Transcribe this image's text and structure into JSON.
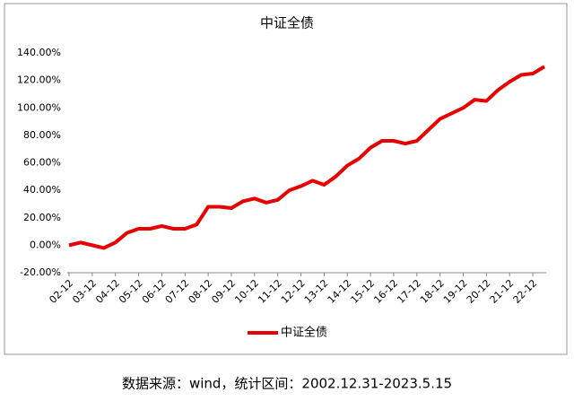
{
  "chart_data": {
    "type": "line",
    "title": "中证全债",
    "categories": [
      "02-12",
      null,
      "03-12",
      null,
      "04-12",
      null,
      "05-12",
      null,
      "06-12",
      null,
      "07-12",
      null,
      "08-12",
      null,
      "09-12",
      null,
      "10-12",
      null,
      "11-12",
      null,
      "12-12",
      null,
      "13-12",
      null,
      "14-12",
      null,
      "15-12",
      null,
      "16-12",
      null,
      "17-12",
      null,
      "18-12",
      null,
      "19-12",
      null,
      "20-12",
      null,
      "21-12",
      null,
      "22-12",
      null
    ],
    "series": [
      {
        "name": "中证全债",
        "color": "#e60000",
        "values": [
          0,
          2,
          0,
          -2,
          2,
          9,
          12,
          12,
          14,
          12,
          12,
          15,
          28,
          28,
          27,
          32,
          34,
          31,
          33,
          40,
          43,
          47,
          44,
          50,
          58,
          63,
          71,
          76,
          76,
          74,
          76,
          84,
          92,
          96,
          100,
          106,
          105,
          113,
          119,
          124,
          125,
          130
        ]
      }
    ],
    "ylim": [
      -20,
      140
    ],
    "yticks": [
      {
        "value": -20,
        "label": "-20.00%"
      },
      {
        "value": 0,
        "label": "0.00%"
      },
      {
        "value": 20,
        "label": "20.00%"
      },
      {
        "value": 40,
        "label": "40.00%"
      },
      {
        "value": 60,
        "label": "60.00%"
      },
      {
        "value": 80,
        "label": "80.00%"
      },
      {
        "value": 100,
        "label": "100.00%"
      },
      {
        "value": 120,
        "label": "120.00%"
      },
      {
        "value": 140,
        "label": "140.00%"
      }
    ],
    "legend": "bottom",
    "note": "数据来源：wind，统计区间：2002.12.31-2023.5.15"
  }
}
